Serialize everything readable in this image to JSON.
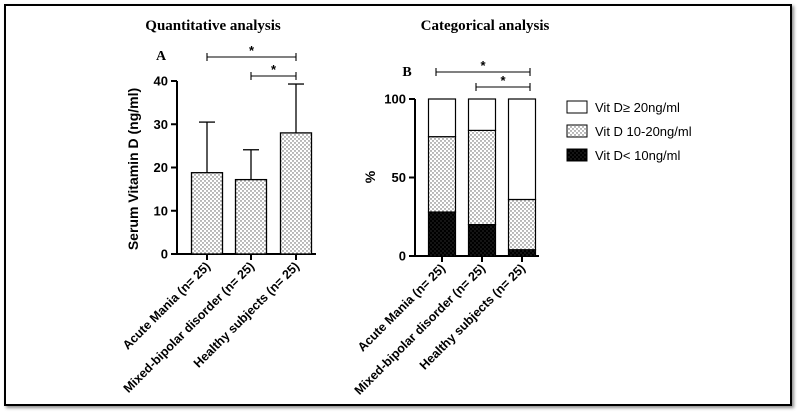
{
  "colors": {
    "ink": "#000000",
    "paper": "#ffffff",
    "dots": "#555555"
  },
  "chart_data": [
    {
      "panel": "A",
      "type": "bar",
      "title": "Quantitative analysis",
      "ylabel": "Serum Vitamin D (ng/ml)",
      "xlabel": "",
      "ylim": [
        0,
        40
      ],
      "yticks": [
        "0",
        "10",
        "20",
        "30",
        "40"
      ],
      "categories": [
        "Acute Mania (n= 25)",
        "Mixed-bipolar disorder (n= 25)",
        "Healthy subjects (n= 25)"
      ],
      "values": [
        18.8,
        17.2,
        28.0
      ],
      "error_upper": [
        30.5,
        24.1,
        39.3
      ],
      "fill": "dotted",
      "significance": [
        {
          "from": 0,
          "to": 2,
          "label": "*"
        },
        {
          "from": 1,
          "to": 2,
          "label": "*"
        }
      ]
    },
    {
      "panel": "B",
      "type": "bar",
      "stacked": true,
      "title": "Categorical analysis",
      "ylabel": "%",
      "xlabel": "",
      "ylim": [
        0,
        100
      ],
      "yticks": [
        "0",
        "50",
        "100"
      ],
      "categories": [
        "Acute Mania (n= 25)",
        "Mixed-bipolar disorder (n= 25)",
        "Healthy subjects (n= 25)"
      ],
      "series": [
        {
          "name": "Vit D< 10ng/ml",
          "fill": "black",
          "values": [
            28,
            20,
            4
          ]
        },
        {
          "name": "Vit D 10-20ng/ml",
          "fill": "dotted",
          "values": [
            48,
            60,
            32
          ]
        },
        {
          "name": "Vit D≥ 20ng/ml",
          "fill": "white",
          "values": [
            24,
            20,
            64
          ]
        }
      ],
      "legend": [
        "Vit D≥ 20ng/ml",
        "Vit D 10-20ng/ml",
        "Vit D< 10ng/ml"
      ],
      "significance": [
        {
          "from": 0,
          "to": 2,
          "label": "*"
        },
        {
          "from": 1,
          "to": 2,
          "label": "*"
        }
      ]
    }
  ]
}
